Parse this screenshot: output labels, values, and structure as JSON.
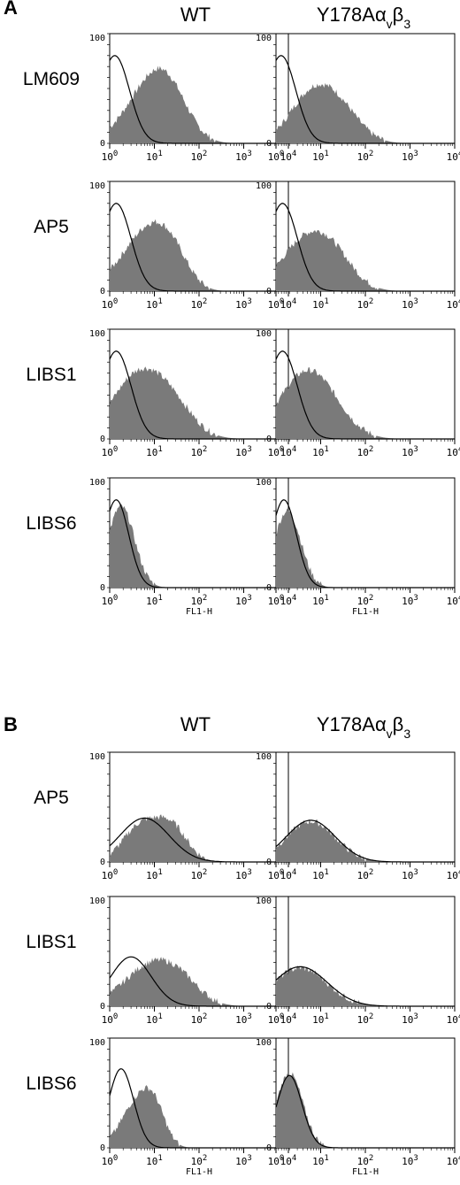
{
  "panels": [
    {
      "letter": "A",
      "columns": [
        "WT",
        "Y178Aαvβ3"
      ],
      "x_axis_label": "FL1-H",
      "rows": [
        {
          "label": "LM609",
          "show_xlabel": false,
          "wt": {
            "ctrl": [
              1.3,
              0.33
            ],
            "stain": [
              [
                6,
                0.55,
                0.38
              ],
              [
                20,
                0.45,
                0.4
              ]
            ]
          },
          "mut": {
            "ctrl": [
              1.3,
              0.33
            ],
            "stain": [
              [
                4.5,
                0.45,
                0.3
              ],
              [
                20,
                0.5,
                0.38
              ]
            ]
          }
        },
        {
          "label": "AP5",
          "show_xlabel": false,
          "wt": {
            "ctrl": [
              1.4,
              0.33
            ],
            "stain": [
              [
                4,
                0.55,
                0.32
              ],
              [
                12,
                0.45,
                0.33
              ],
              [
                30,
                0.35,
                0.15
              ]
            ]
          },
          "mut": {
            "ctrl": [
              1.4,
              0.33
            ],
            "stain": [
              [
                3,
                0.5,
                0.32
              ],
              [
                15,
                0.5,
                0.38
              ]
            ]
          }
        },
        {
          "label": "LIBS1",
          "show_xlabel": false,
          "wt": {
            "ctrl": [
              1.4,
              0.33
            ],
            "stain": [
              [
                3,
                0.55,
                0.35
              ],
              [
                10,
                0.6,
                0.33
              ],
              [
                30,
                0.45,
                0.12
              ]
            ]
          },
          "mut": {
            "ctrl": [
              1.4,
              0.33
            ],
            "stain": [
              [
                2.8,
                0.55,
                0.35
              ],
              [
                10,
                0.55,
                0.36
              ]
            ]
          }
        },
        {
          "label": "LIBS6",
          "show_xlabel": true,
          "wt": {
            "ctrl": [
              1.4,
              0.28
            ],
            "stain": [
              [
                1.8,
                0.3,
                0.74
              ]
            ]
          },
          "mut": {
            "ctrl": [
              1.5,
              0.28
            ],
            "stain": [
              [
                1.8,
                0.3,
                0.7
              ]
            ]
          }
        }
      ]
    },
    {
      "letter": "B",
      "columns": [
        "WT",
        "Y178Aαvβ3"
      ],
      "x_axis_label": "FL1-H",
      "rows": [
        {
          "label": "AP5",
          "show_xlabel": false,
          "wt": {
            "ctrl": [
              6,
              0.55,
              0.4
            ],
            "stain": [
              [
                5,
                0.4,
                0.33
              ],
              [
                25,
                0.35,
                0.3
              ]
            ]
          },
          "mut": {
            "ctrl": [
              6,
              0.55,
              0.38
            ],
            "stain": [
              [
                6,
                0.55,
                0.37
              ]
            ]
          }
        },
        {
          "label": "LIBS1",
          "show_xlabel": false,
          "wt": {
            "ctrl": [
              3,
              0.45,
              0.45
            ],
            "stain": [
              [
                8,
                0.6,
                0.36
              ],
              [
                40,
                0.45,
                0.15
              ]
            ]
          },
          "mut": {
            "ctrl": [
              3.5,
              0.6,
              0.36
            ],
            "stain": [
              [
                3.5,
                0.6,
                0.35
              ]
            ]
          }
        },
        {
          "label": "LIBS6",
          "show_xlabel": true,
          "wt": {
            "ctrl": [
              1.8,
              0.28,
              0.72
            ],
            "stain": [
              [
                4,
                0.35,
                0.4
              ],
              [
                10,
                0.25,
                0.28
              ]
            ]
          },
          "mut": {
            "ctrl": [
              2,
              0.28,
              0.66
            ],
            "stain": [
              [
                2,
                0.3,
                0.68
              ]
            ]
          }
        }
      ]
    }
  ],
  "x_ticks": [
    "10⁰",
    "10¹",
    "10²",
    "10³",
    "10⁴"
  ],
  "y_ticks": [
    "0",
    "100"
  ],
  "colors": {
    "stain_fill": "#7a7a7a",
    "line": "#000000",
    "background": "#ffffff"
  },
  "chart_data": {
    "type": "area",
    "description_free": true,
    "x_axis": {
      "label": "FL1-H",
      "scale": "log",
      "range": [
        1,
        10000
      ]
    },
    "y_axis": {
      "range": [
        0,
        100
      ]
    },
    "series_note": "filled = antibody stain, open line = control"
  }
}
